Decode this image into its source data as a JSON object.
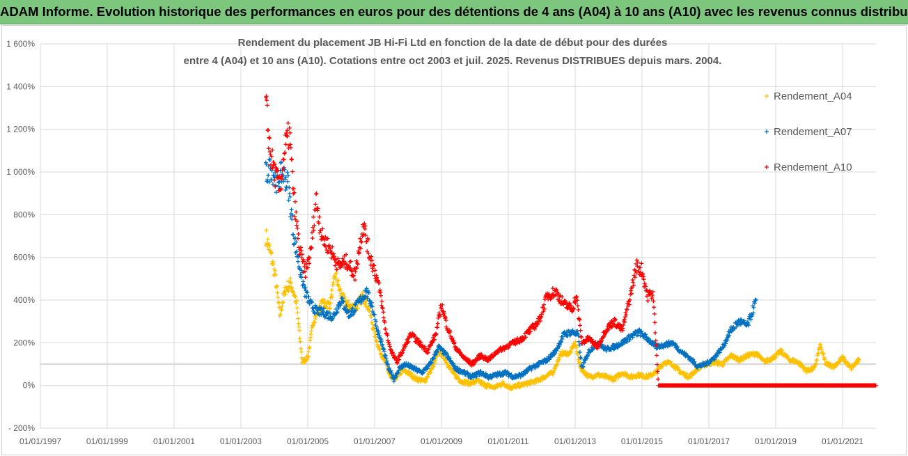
{
  "banner": {
    "title": "ADAM Informe. Evolution historique des performances en euros pour des détentions de 4 ans (A04) à 10 ans (A10) avec les revenus connus distribués"
  },
  "colors": {
    "banner": "#7dc67d",
    "A04": "#ffc000",
    "A07": "#0070c0",
    "A10": "#ff0000",
    "grid": "#d9d9d9",
    "text": "#595959"
  },
  "chart_data": {
    "type": "scatter",
    "title_line1": "Rendement du placement JB Hi-Fi Ltd  en fonction de la date de début pour des durées",
    "title_line2": "entre 4 (A04) et 10 ans (A10).  Cotations entre oct 2003 et juil. 2025. Revenus DISTRIBUES depuis mars. 2004.",
    "xlabel": "",
    "ylabel": "",
    "x_range": [
      "1997-01-01",
      "2022-01-01"
    ],
    "ylim": [
      -200,
      1600
    ],
    "y_tick_labels": [
      "- 200%",
      "0%",
      "200%",
      "400%",
      "600%",
      "800%",
      "1 000%",
      "1 200%",
      "1 400%",
      "1 600%"
    ],
    "y_tick_values": [
      -200,
      0,
      200,
      400,
      600,
      800,
      1000,
      1200,
      1400,
      1600
    ],
    "x_tick_labels": [
      "01/01/1997",
      "01/01/1999",
      "01/01/2001",
      "01/01/2003",
      "01/01/2005",
      "01/01/2007",
      "01/01/2009",
      "01/01/2011",
      "01/01/2013",
      "01/01/2015",
      "01/01/2017",
      "01/01/2019",
      "01/01/2021"
    ],
    "x_tick_values": [
      "1997-01-01",
      "1999-01-01",
      "2001-01-01",
      "2003-01-01",
      "2005-01-01",
      "2007-01-01",
      "2009-01-01",
      "2011-01-01",
      "2013-01-01",
      "2015-01-01",
      "2017-01-01",
      "2019-01-01",
      "2021-01-01"
    ],
    "grid": true,
    "legend_position": "right",
    "series": [
      {
        "name": "Rendement_A04",
        "color": "#ffc000",
        "points": [
          [
            "2003-10-01",
            700
          ],
          [
            "2003-12-01",
            600
          ],
          [
            "2004-01-15",
            500
          ],
          [
            "2004-03-01",
            330
          ],
          [
            "2004-05-01",
            450
          ],
          [
            "2004-07-01",
            480
          ],
          [
            "2004-09-01",
            380
          ],
          [
            "2004-11-01",
            110
          ],
          [
            "2005-01-01",
            130
          ],
          [
            "2005-03-01",
            300
          ],
          [
            "2005-06-01",
            380
          ],
          [
            "2005-09-01",
            380
          ],
          [
            "2005-11-01",
            520
          ],
          [
            "2006-01-01",
            420
          ],
          [
            "2006-03-01",
            380
          ],
          [
            "2006-06-01",
            360
          ],
          [
            "2006-09-01",
            420
          ],
          [
            "2006-11-01",
            360
          ],
          [
            "2007-01-01",
            240
          ],
          [
            "2007-03-01",
            160
          ],
          [
            "2007-05-01",
            110
          ],
          [
            "2007-07-01",
            30
          ],
          [
            "2007-09-01",
            40
          ],
          [
            "2007-11-01",
            70
          ],
          [
            "2008-01-01",
            60
          ],
          [
            "2008-04-01",
            30
          ],
          [
            "2008-07-01",
            20
          ],
          [
            "2008-10-01",
            90
          ],
          [
            "2008-12-01",
            160
          ],
          [
            "2009-02-01",
            130
          ],
          [
            "2009-05-01",
            60
          ],
          [
            "2009-08-01",
            20
          ],
          [
            "2009-11-01",
            10
          ],
          [
            "2010-02-01",
            20
          ],
          [
            "2010-05-01",
            0
          ],
          [
            "2010-08-01",
            -10
          ],
          [
            "2010-11-01",
            10
          ],
          [
            "2011-02-01",
            -10
          ],
          [
            "2011-05-01",
            0
          ],
          [
            "2011-08-01",
            10
          ],
          [
            "2011-11-01",
            20
          ],
          [
            "2012-02-01",
            40
          ],
          [
            "2012-05-01",
            60
          ],
          [
            "2012-08-01",
            150
          ],
          [
            "2012-11-01",
            150
          ],
          [
            "2013-01-01",
            200
          ],
          [
            "2013-03-01",
            80
          ],
          [
            "2013-06-01",
            40
          ],
          [
            "2013-09-01",
            50
          ],
          [
            "2013-12-01",
            40
          ],
          [
            "2014-03-01",
            30
          ],
          [
            "2014-06-01",
            60
          ],
          [
            "2014-09-01",
            40
          ],
          [
            "2014-12-01",
            50
          ],
          [
            "2015-03-01",
            40
          ],
          [
            "2015-06-01",
            60
          ],
          [
            "2015-09-01",
            110
          ],
          [
            "2015-12-01",
            100
          ],
          [
            "2016-03-01",
            60
          ],
          [
            "2016-06-01",
            40
          ],
          [
            "2016-09-01",
            80
          ],
          [
            "2016-12-01",
            100
          ],
          [
            "2017-03-01",
            110
          ],
          [
            "2017-06-01",
            100
          ],
          [
            "2017-09-01",
            140
          ],
          [
            "2017-12-01",
            120
          ],
          [
            "2018-03-01",
            140
          ],
          [
            "2018-06-01",
            150
          ],
          [
            "2018-09-01",
            110
          ],
          [
            "2018-12-01",
            130
          ],
          [
            "2019-03-01",
            160
          ],
          [
            "2019-06-01",
            120
          ],
          [
            "2019-09-01",
            110
          ],
          [
            "2019-12-01",
            70
          ],
          [
            "2020-03-01",
            80
          ],
          [
            "2020-05-01",
            190
          ],
          [
            "2020-07-01",
            100
          ],
          [
            "2020-10-01",
            90
          ],
          [
            "2021-01-01",
            130
          ],
          [
            "2021-04-01",
            80
          ],
          [
            "2021-07-01",
            120
          ]
        ]
      },
      {
        "name": "Rendement_A07",
        "color": "#0070c0",
        "points": [
          [
            "2003-10-01",
            990
          ],
          [
            "2003-12-01",
            1020
          ],
          [
            "2004-02-01",
            950
          ],
          [
            "2004-04-01",
            1000
          ],
          [
            "2004-06-01",
            940
          ],
          [
            "2004-08-01",
            700
          ],
          [
            "2004-10-01",
            560
          ],
          [
            "2004-12-01",
            440
          ],
          [
            "2005-02-01",
            380
          ],
          [
            "2005-04-01",
            350
          ],
          [
            "2005-07-01",
            340
          ],
          [
            "2005-10-01",
            320
          ],
          [
            "2006-01-01",
            400
          ],
          [
            "2006-04-01",
            330
          ],
          [
            "2006-07-01",
            380
          ],
          [
            "2006-10-01",
            440
          ],
          [
            "2006-12-01",
            380
          ],
          [
            "2007-02-01",
            260
          ],
          [
            "2007-04-01",
            180
          ],
          [
            "2007-06-01",
            80
          ],
          [
            "2007-08-01",
            30
          ],
          [
            "2007-10-01",
            80
          ],
          [
            "2007-12-01",
            100
          ],
          [
            "2008-03-01",
            80
          ],
          [
            "2008-06-01",
            60
          ],
          [
            "2008-09-01",
            100
          ],
          [
            "2008-12-01",
            180
          ],
          [
            "2009-03-01",
            140
          ],
          [
            "2009-06-01",
            80
          ],
          [
            "2009-09-01",
            60
          ],
          [
            "2009-12-01",
            40
          ],
          [
            "2010-03-01",
            60
          ],
          [
            "2010-06-01",
            40
          ],
          [
            "2010-09-01",
            50
          ],
          [
            "2010-12-01",
            60
          ],
          [
            "2011-03-01",
            40
          ],
          [
            "2011-06-01",
            50
          ],
          [
            "2011-09-01",
            80
          ],
          [
            "2011-12-01",
            100
          ],
          [
            "2012-03-01",
            120
          ],
          [
            "2012-06-01",
            160
          ],
          [
            "2012-09-01",
            240
          ],
          [
            "2012-12-01",
            250
          ],
          [
            "2013-02-01",
            240
          ],
          [
            "2013-03-15",
            80
          ],
          [
            "2013-06-01",
            160
          ],
          [
            "2013-09-01",
            200
          ],
          [
            "2013-12-01",
            170
          ],
          [
            "2014-03-01",
            180
          ],
          [
            "2014-06-01",
            200
          ],
          [
            "2014-09-01",
            230
          ],
          [
            "2014-12-01",
            250
          ],
          [
            "2015-03-01",
            220
          ],
          [
            "2015-06-01",
            180
          ],
          [
            "2015-09-01",
            190
          ],
          [
            "2015-12-01",
            200
          ],
          [
            "2016-03-01",
            160
          ],
          [
            "2016-06-01",
            130
          ],
          [
            "2016-09-01",
            90
          ],
          [
            "2016-12-01",
            100
          ],
          [
            "2017-03-01",
            130
          ],
          [
            "2017-06-01",
            180
          ],
          [
            "2017-09-01",
            260
          ],
          [
            "2017-12-01",
            300
          ],
          [
            "2018-03-01",
            280
          ],
          [
            "2018-06-01",
            400
          ]
        ]
      },
      {
        "name": "Rendement_A10",
        "color": "#ff0000",
        "points": [
          [
            "2003-10-01",
            1320
          ],
          [
            "2003-11-15",
            1100
          ],
          [
            "2004-01-01",
            1000
          ],
          [
            "2004-03-01",
            920
          ],
          [
            "2004-05-01",
            1120
          ],
          [
            "2004-06-15",
            1180
          ],
          [
            "2004-08-01",
            880
          ],
          [
            "2004-10-01",
            640
          ],
          [
            "2004-12-01",
            530
          ],
          [
            "2005-02-01",
            620
          ],
          [
            "2005-04-01",
            880
          ],
          [
            "2005-06-01",
            700
          ],
          [
            "2005-09-01",
            640
          ],
          [
            "2005-12-01",
            560
          ],
          [
            "2006-03-01",
            580
          ],
          [
            "2006-06-01",
            520
          ],
          [
            "2006-09-01",
            760
          ],
          [
            "2006-11-01",
            620
          ],
          [
            "2007-01-01",
            540
          ],
          [
            "2007-03-01",
            440
          ],
          [
            "2007-05-01",
            260
          ],
          [
            "2007-07-01",
            160
          ],
          [
            "2007-09-01",
            110
          ],
          [
            "2007-11-01",
            160
          ],
          [
            "2008-02-01",
            240
          ],
          [
            "2008-05-01",
            200
          ],
          [
            "2008-08-01",
            160
          ],
          [
            "2008-11-01",
            240
          ],
          [
            "2009-01-01",
            380
          ],
          [
            "2009-03-01",
            280
          ],
          [
            "2009-06-01",
            180
          ],
          [
            "2009-09-01",
            130
          ],
          [
            "2009-12-01",
            100
          ],
          [
            "2010-03-01",
            140
          ],
          [
            "2010-06-01",
            120
          ],
          [
            "2010-09-01",
            160
          ],
          [
            "2010-12-01",
            180
          ],
          [
            "2011-03-01",
            200
          ],
          [
            "2011-06-01",
            220
          ],
          [
            "2011-09-01",
            260
          ],
          [
            "2011-12-01",
            300
          ],
          [
            "2012-03-01",
            420
          ],
          [
            "2012-06-01",
            440
          ],
          [
            "2012-09-01",
            380
          ],
          [
            "2012-12-01",
            360
          ],
          [
            "2013-01-15",
            420
          ],
          [
            "2013-03-15",
            200
          ],
          [
            "2013-06-01",
            220
          ],
          [
            "2013-09-01",
            180
          ],
          [
            "2013-12-01",
            260
          ],
          [
            "2014-03-01",
            300
          ],
          [
            "2014-06-01",
            260
          ],
          [
            "2014-09-01",
            430
          ],
          [
            "2014-11-01",
            560
          ],
          [
            "2015-01-01",
            540
          ],
          [
            "2015-03-01",
            420
          ],
          [
            "2015-05-01",
            430
          ],
          [
            "2015-07-01",
            0
          ],
          [
            "2016-01-01",
            0
          ],
          [
            "2017-01-01",
            0
          ],
          [
            "2018-01-01",
            0
          ],
          [
            "2019-01-01",
            0
          ],
          [
            "2020-01-01",
            0
          ],
          [
            "2021-01-01",
            0
          ],
          [
            "2021-12-31",
            0
          ]
        ]
      }
    ]
  }
}
